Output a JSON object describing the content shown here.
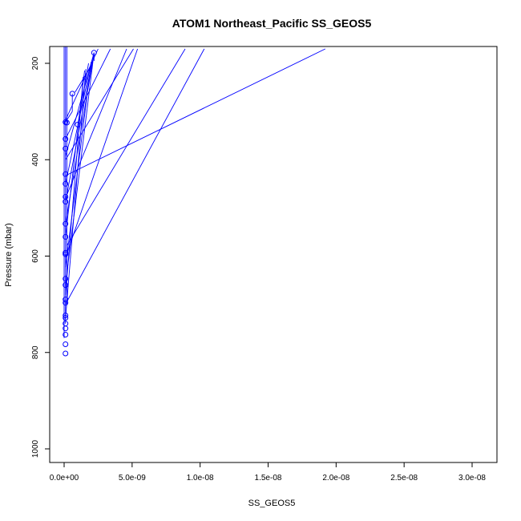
{
  "chart_data": {
    "type": "scatter",
    "title": "ATOM1 Northeast_Pacific SS_GEOS5",
    "xlabel": "SS_GEOS5",
    "ylabel": "Pressure (mbar)",
    "xlim": [
      0,
      3e-08
    ],
    "ylim": [
      1000,
      170
    ],
    "y_reversed": true,
    "x_ticks": [
      0,
      5e-09,
      1e-08,
      1.5e-08,
      2e-08,
      2.5e-08,
      3e-08
    ],
    "x_tick_labels": [
      "0.0e+00",
      "5.0e-09",
      "1.0e-08",
      "1.5e-08",
      "2.0e-08",
      "2.5e-08",
      "3.0e-08"
    ],
    "y_ticks": [
      200,
      400,
      600,
      800,
      1000
    ],
    "y_tick_labels": [
      "200",
      "400",
      "600",
      "800",
      "1000"
    ],
    "series_color": "#0000ff",
    "grid": false,
    "points": [
      {
        "x": 2.2e-09,
        "y": 178
      },
      {
        "x": 6e-10,
        "y": 263
      },
      {
        "x": 1e-10,
        "y": 322
      },
      {
        "x": 2e-10,
        "y": 323
      },
      {
        "x": 1e-09,
        "y": 327
      },
      {
        "x": 1e-10,
        "y": 357
      },
      {
        "x": 1e-10,
        "y": 377
      },
      {
        "x": 1e-10,
        "y": 430
      },
      {
        "x": 1e-10,
        "y": 450
      },
      {
        "x": 1e-10,
        "y": 477
      },
      {
        "x": 1e-10,
        "y": 487
      },
      {
        "x": 1e-10,
        "y": 533
      },
      {
        "x": 1e-10,
        "y": 560
      },
      {
        "x": 1e-10,
        "y": 593
      },
      {
        "x": 1e-10,
        "y": 596
      },
      {
        "x": 1e-10,
        "y": 647
      },
      {
        "x": 1e-10,
        "y": 660
      },
      {
        "x": 1e-10,
        "y": 690
      },
      {
        "x": 1e-10,
        "y": 697
      },
      {
        "x": 1e-10,
        "y": 723
      },
      {
        "x": 1e-10,
        "y": 728
      },
      {
        "x": 1e-10,
        "y": 740
      },
      {
        "x": 1e-10,
        "y": 750
      },
      {
        "x": 1e-10,
        "y": 763
      },
      {
        "x": 1e-10,
        "y": 783
      },
      {
        "x": 1e-10,
        "y": 802
      }
    ],
    "segments": [
      {
        "x1": 1e-10,
        "y1": 120,
        "x2": 1e-10,
        "y2": 740
      },
      {
        "x1": 2e-10,
        "y1": 120,
        "x2": 2e-10,
        "y2": 700
      },
      {
        "x1": 0,
        "y1": 120,
        "x2": 0,
        "y2": 770
      },
      {
        "x1": 1.92e-08,
        "y1": 170,
        "x2": 1e-10,
        "y2": 433
      },
      {
        "x1": 1.03e-08,
        "y1": 170,
        "x2": 1e-10,
        "y2": 700
      },
      {
        "x1": 8.9e-09,
        "y1": 170,
        "x2": 2e-10,
        "y2": 578
      },
      {
        "x1": 5.4e-09,
        "y1": 170,
        "x2": 1e-10,
        "y2": 603
      },
      {
        "x1": 5.1e-09,
        "y1": 170,
        "x2": 1e-10,
        "y2": 400
      },
      {
        "x1": 4.6e-09,
        "y1": 170,
        "x2": 1e-10,
        "y2": 480
      },
      {
        "x1": 3.4e-09,
        "y1": 170,
        "x2": 1e-10,
        "y2": 357
      },
      {
        "x1": 2.5e-09,
        "y1": 170,
        "x2": 1e-10,
        "y2": 318
      },
      {
        "x1": 2.2e-09,
        "y1": 178,
        "x2": 1e-10,
        "y2": 393
      },
      {
        "x1": 2.2e-09,
        "y1": 178,
        "x2": 1e-10,
        "y2": 533
      },
      {
        "x1": 2.2e-09,
        "y1": 178,
        "x2": 1e-10,
        "y2": 660
      },
      {
        "x1": 2e-09,
        "y1": 197,
        "x2": 1e-10,
        "y2": 450
      },
      {
        "x1": 2e-09,
        "y1": 197,
        "x2": 1e-10,
        "y2": 623
      },
      {
        "x1": 2e-09,
        "y1": 205,
        "x2": 1e-10,
        "y2": 487
      },
      {
        "x1": 1.8e-09,
        "y1": 200,
        "x2": 1e-09,
        "y2": 327
      },
      {
        "x1": 1.6e-09,
        "y1": 212,
        "x2": 1e-10,
        "y2": 730
      },
      {
        "x1": 1.5e-09,
        "y1": 215,
        "x2": 1e-10,
        "y2": 560
      },
      {
        "x1": 1.4e-09,
        "y1": 228,
        "x2": 1e-10,
        "y2": 680
      },
      {
        "x1": 2.1e-09,
        "y1": 200,
        "x2": 8e-10,
        "y2": 260
      },
      {
        "x1": 2.2e-09,
        "y1": 178,
        "x2": 2.2e-09,
        "y2": 195
      },
      {
        "x1": 6e-10,
        "y1": 263,
        "x2": 6e-10,
        "y2": 300
      },
      {
        "x1": 6e-10,
        "y1": 300,
        "x2": 1e-10,
        "y2": 322
      }
    ]
  }
}
